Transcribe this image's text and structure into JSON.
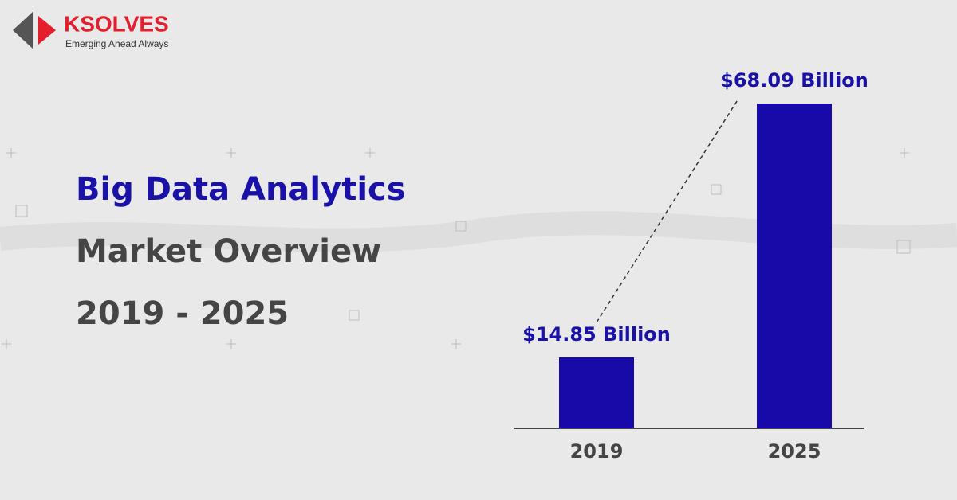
{
  "logo": {
    "name": "KSOLVES",
    "tagline": "Emerging Ahead Always"
  },
  "chart_data": {
    "type": "bar",
    "title_lines": [
      "Big Data Analytics",
      "Market Overview",
      "2019 - 2025"
    ],
    "categories": [
      "2019",
      "2025"
    ],
    "values": [
      14.85,
      68.09
    ],
    "value_labels": [
      "$14.85 Billion",
      "$68.09 Billion"
    ],
    "color": "#170aa8"
  }
}
